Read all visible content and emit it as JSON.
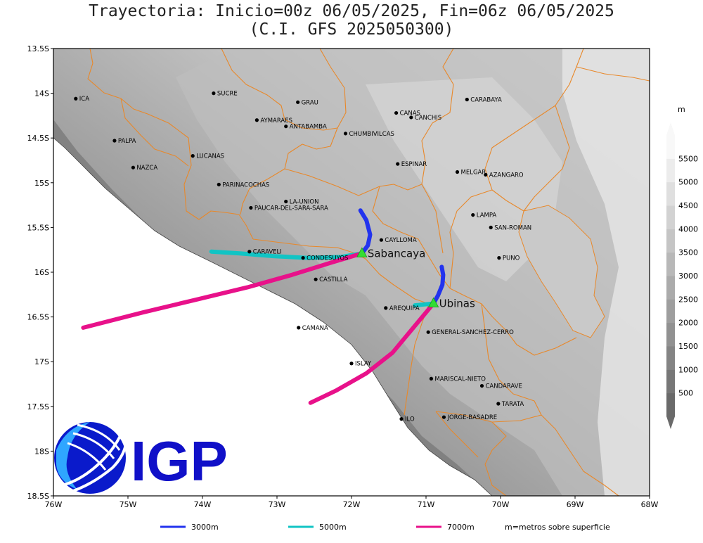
{
  "title": "Trayectoria: Inicio=00z 06/05/2025, Fin=06z 06/05/2025",
  "subtitle": "(C.I. GFS 2025050300)",
  "map": {
    "lon_range": [
      -76,
      -68
    ],
    "lat_range": [
      -18.5,
      -13.5
    ],
    "x_ticks": [
      "76W",
      "75W",
      "74W",
      "73W",
      "72W",
      "71W",
      "70W",
      "69W",
      "68W"
    ],
    "y_ticks": [
      "13.5S",
      "14S",
      "14.5S",
      "15S",
      "15.5S",
      "16S",
      "16.5S",
      "17S",
      "17.5S",
      "18S",
      "18.5S"
    ]
  },
  "places": [
    {
      "name": "ICA",
      "lon": -75.7,
      "lat": -14.06
    },
    {
      "name": "SUCRE",
      "lon": -73.85,
      "lat": -14.0
    },
    {
      "name": "GRAU",
      "lon": -72.72,
      "lat": -14.1
    },
    {
      "name": "AYMARAES",
      "lon": -73.27,
      "lat": -14.3
    },
    {
      "name": "ANTABAMBA",
      "lon": -72.88,
      "lat": -14.37
    },
    {
      "name": "CANAS",
      "lon": -71.4,
      "lat": -14.22
    },
    {
      "name": "CANCHIS",
      "lon": -71.2,
      "lat": -14.27
    },
    {
      "name": "CARABAYA",
      "lon": -70.45,
      "lat": -14.07
    },
    {
      "name": "CHUMBIVILCAS",
      "lon": -72.08,
      "lat": -14.45
    },
    {
      "name": "PALPA",
      "lon": -75.18,
      "lat": -14.53
    },
    {
      "name": "LUCANAS",
      "lon": -74.13,
      "lat": -14.7
    },
    {
      "name": "NAZCA",
      "lon": -74.93,
      "lat": -14.83
    },
    {
      "name": "ESPINAR",
      "lon": -71.38,
      "lat": -14.79
    },
    {
      "name": "MELGAR",
      "lon": -70.58,
      "lat": -14.88
    },
    {
      "name": "AZANGARO",
      "lon": -70.2,
      "lat": -14.91
    },
    {
      "name": "PARINACOCHAS",
      "lon": -73.78,
      "lat": -15.02
    },
    {
      "name": "LA-UNION",
      "lon": -72.88,
      "lat": -15.21
    },
    {
      "name": "PAUCAR-DEL-SARA-SARA",
      "lon": -73.35,
      "lat": -15.28
    },
    {
      "name": "LAMPA",
      "lon": -70.37,
      "lat": -15.36
    },
    {
      "name": "SAN-ROMAN",
      "lon": -70.13,
      "lat": -15.5
    },
    {
      "name": "CAYLLOMA",
      "lon": -71.6,
      "lat": -15.64
    },
    {
      "name": "CARAVELI",
      "lon": -73.37,
      "lat": -15.77
    },
    {
      "name": "CONDESUYOS",
      "lon": -72.65,
      "lat": -15.84
    },
    {
      "name": "PUNO",
      "lon": -70.02,
      "lat": -15.84
    },
    {
      "name": "CASTILLA",
      "lon": -72.48,
      "lat": -16.08
    },
    {
      "name": "AREQUIPA",
      "lon": -71.54,
      "lat": -16.4
    },
    {
      "name": "GENERAL-SANCHEZ-CERRO",
      "lon": -70.97,
      "lat": -16.67
    },
    {
      "name": "CAMANA",
      "lon": -72.71,
      "lat": -16.62
    },
    {
      "name": "ISLAY",
      "lon": -72.0,
      "lat": -17.02
    },
    {
      "name": "MARISCAL-NIETO",
      "lon": -70.93,
      "lat": -17.19
    },
    {
      "name": "CANDARAVE",
      "lon": -70.25,
      "lat": -17.27
    },
    {
      "name": "TARATA",
      "lon": -70.03,
      "lat": -17.47
    },
    {
      "name": "ILO",
      "lon": -71.33,
      "lat": -17.64
    },
    {
      "name": "JORGE-BASADRE",
      "lon": -70.76,
      "lat": -17.62
    }
  ],
  "volcanoes": [
    {
      "name": "Sabancaya",
      "lon": -71.86,
      "lat": -15.79
    },
    {
      "name": "Ubinas",
      "lon": -70.9,
      "lat": -16.35
    }
  ],
  "trajectories": [
    {
      "volcano": "Sabancaya",
      "level": "3000m",
      "color": "#2233ee",
      "points": [
        [
          -71.86,
          -15.79
        ],
        [
          -71.78,
          -15.7
        ],
        [
          -71.75,
          -15.58
        ],
        [
          -71.8,
          -15.42
        ],
        [
          -71.88,
          -15.31
        ]
      ]
    },
    {
      "volcano": "Sabancaya",
      "level": "5000m",
      "color": "#11c4c4",
      "points": [
        [
          -71.86,
          -15.79
        ],
        [
          -72.15,
          -15.83
        ],
        [
          -72.6,
          -15.84
        ],
        [
          -73.05,
          -15.82
        ],
        [
          -73.5,
          -15.79
        ],
        [
          -73.88,
          -15.77
        ]
      ]
    },
    {
      "volcano": "Sabancaya",
      "level": "7000m",
      "color": "#e8118a",
      "points": [
        [
          -71.86,
          -15.79
        ],
        [
          -72.3,
          -15.9
        ],
        [
          -72.8,
          -16.03
        ],
        [
          -73.4,
          -16.17
        ],
        [
          -74.1,
          -16.31
        ],
        [
          -74.8,
          -16.45
        ],
        [
          -75.6,
          -16.62
        ]
      ]
    },
    {
      "volcano": "Ubinas",
      "level": "3000m",
      "color": "#2233ee",
      "points": [
        [
          -70.9,
          -16.35
        ],
        [
          -70.84,
          -16.26
        ],
        [
          -70.78,
          -16.14
        ],
        [
          -70.77,
          -16.03
        ],
        [
          -70.79,
          -15.94
        ]
      ]
    },
    {
      "volcano": "Ubinas",
      "level": "5000m",
      "color": "#11c4c4",
      "points": [
        [
          -70.9,
          -16.35
        ],
        [
          -71.02,
          -16.36
        ],
        [
          -71.15,
          -16.37
        ]
      ]
    },
    {
      "volcano": "Ubinas",
      "level": "7000m",
      "color": "#e8118a",
      "points": [
        [
          -70.9,
          -16.35
        ],
        [
          -71.15,
          -16.6
        ],
        [
          -71.45,
          -16.9
        ],
        [
          -71.8,
          -17.13
        ],
        [
          -72.2,
          -17.32
        ],
        [
          -72.55,
          -17.46
        ]
      ]
    }
  ],
  "colorbar": {
    "unit": "m",
    "labels": [
      "500",
      "1000",
      "1500",
      "2000",
      "2500",
      "3000",
      "3500",
      "4000",
      "4500",
      "5000",
      "5500"
    ],
    "colors": [
      "#6a6a6a",
      "#777777",
      "#848484",
      "#919191",
      "#9e9e9e",
      "#ababab",
      "#b8b8b8",
      "#c5c5c5",
      "#d2d2d2",
      "#dfdfdf",
      "#ececec",
      "#f8f8f8"
    ]
  },
  "legend": {
    "items": [
      {
        "label": "3000m",
        "color": "#2233ee"
      },
      {
        "label": "5000m",
        "color": "#11c4c4"
      },
      {
        "label": "7000m",
        "color": "#e8118a"
      }
    ],
    "note": "m=metros sobre superficie"
  },
  "logo": {
    "text": "IGP",
    "color": "#1010c8"
  },
  "colors": {
    "border": "#e8882a",
    "ocean": "#ffffff",
    "volcano_marker": "#33dd33"
  }
}
